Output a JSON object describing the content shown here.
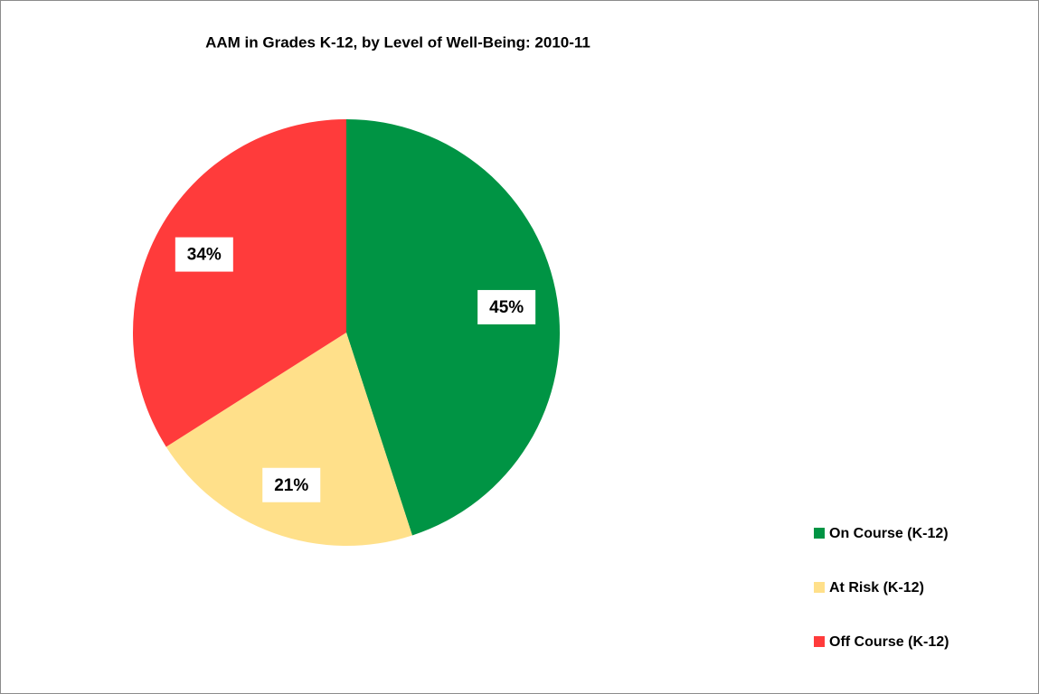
{
  "chart_data": {
    "type": "pie",
    "title": "AAM in Grades K-12, by Level of Well-Being: 2010-11",
    "categories": [
      "On Course (K-12)",
      "At Risk (K-12)",
      "Off Course (K-12)"
    ],
    "values": [
      45,
      21,
      34
    ],
    "value_labels": [
      "45%",
      "21%",
      "34%"
    ],
    "colors": [
      "#009444",
      "#ffe08a",
      "#ff3b3b"
    ],
    "legend": "lower right"
  }
}
